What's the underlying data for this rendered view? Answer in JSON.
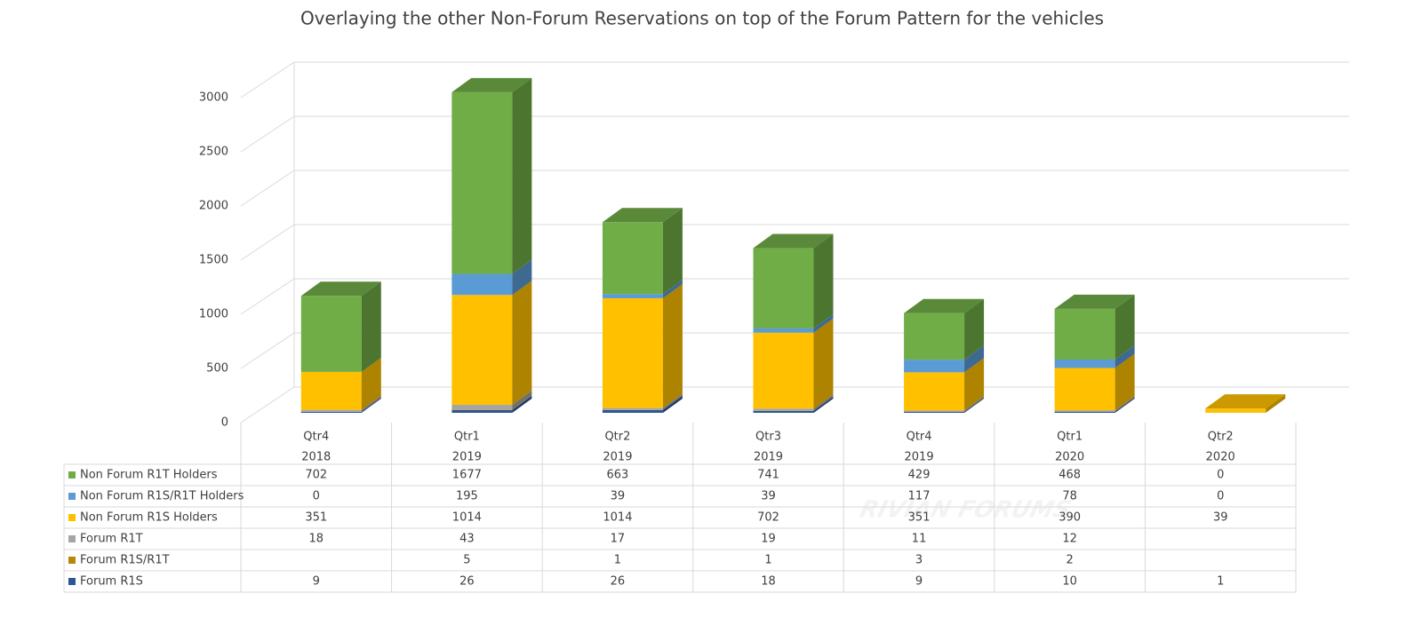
{
  "chart_data": {
    "type": "bar3d_stacked",
    "title": "Overlaying the other Non-Forum Reservations on top of the Forum Pattern for the vehicles",
    "categories": [
      [
        "Qtr4",
        "2018"
      ],
      [
        "Qtr1",
        "2019"
      ],
      [
        "Qtr2",
        "2019"
      ],
      [
        "Qtr3",
        "2019"
      ],
      [
        "Qtr4",
        "2019"
      ],
      [
        "Qtr1",
        "2020"
      ],
      [
        "Qtr2",
        "2020"
      ]
    ],
    "series": [
      {
        "name": "Non Forum R1T Holders",
        "color": "#70ad47",
        "values": [
          702,
          1677,
          663,
          741,
          429,
          468,
          0
        ]
      },
      {
        "name": "Non Forum R1S/R1T Holders",
        "color": "#5b9bd5",
        "values": [
          0,
          195,
          39,
          39,
          117,
          78,
          0
        ]
      },
      {
        "name": "Non Forum R1S Holders",
        "color": "#ffc000",
        "values": [
          351,
          1014,
          1014,
          702,
          351,
          390,
          39
        ]
      },
      {
        "name": "Forum R1T",
        "color": "#a5a5a5",
        "values": [
          18,
          43,
          17,
          19,
          11,
          12,
          null
        ]
      },
      {
        "name": "Forum R1S/R1T",
        "color": "#b8860b",
        "values": [
          null,
          5,
          1,
          1,
          3,
          2,
          null
        ]
      },
      {
        "name": "Forum R1S",
        "color": "#2f5597",
        "values": [
          9,
          26,
          26,
          18,
          9,
          10,
          1
        ]
      }
    ],
    "ylim": [
      0,
      3000
    ],
    "yticks": [
      0,
      500,
      1000,
      1500,
      2000,
      2500,
      3000
    ],
    "grid": true,
    "watermark": "RIVIAN FORUMS"
  }
}
